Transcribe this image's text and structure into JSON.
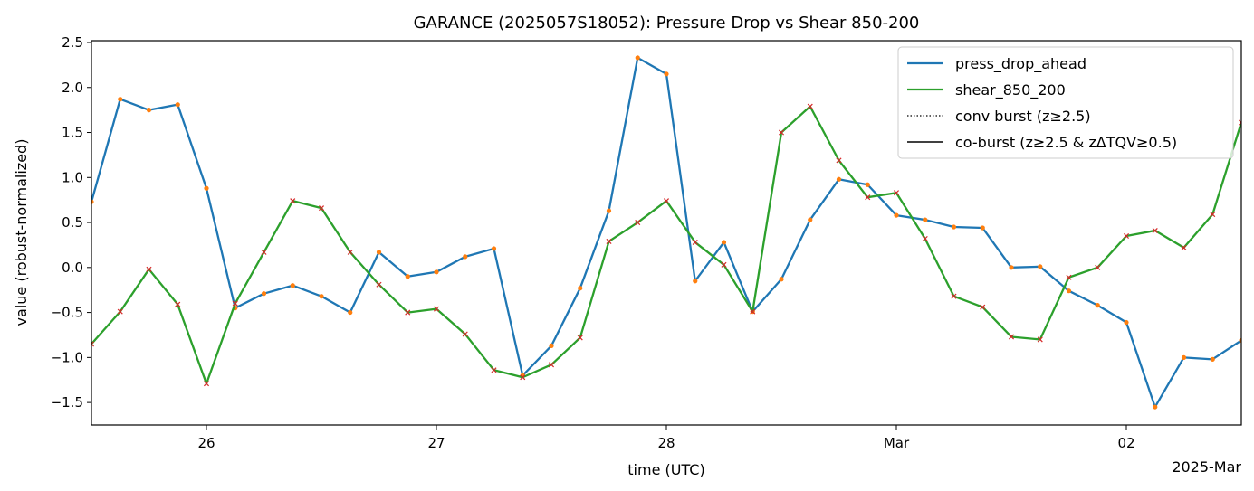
{
  "chart_data": {
    "type": "line",
    "title": "GARANCE (2025057S18052): Pressure Drop vs Shear 850-200",
    "xlabel": "time (UTC)",
    "ylabel": "value (robust-normalized)",
    "x_offset_label": "2025-Mar",
    "x_ticks": [
      {
        "x": 1,
        "label": "26"
      },
      {
        "x": 2,
        "label": "27"
      },
      {
        "x": 3,
        "label": "28"
      },
      {
        "x": 4,
        "label": "Mar"
      },
      {
        "x": 5,
        "label": "02"
      }
    ],
    "y_ticks": [
      -1.5,
      -1.0,
      -0.5,
      0.0,
      0.5,
      1.0,
      1.5,
      2.0,
      2.5
    ],
    "y_tick_labels": [
      "−1.5",
      "−1.0",
      "−0.5",
      "0.0",
      "0.5",
      "1.0",
      "1.5",
      "2.0",
      "2.5"
    ],
    "xlim": [
      0.5,
      5.5
    ],
    "ylim": [
      -1.75,
      2.52
    ],
    "x": [
      0.5,
      0.625,
      0.75,
      0.875,
      1.0,
      1.125,
      1.25,
      1.375,
      1.5,
      1.625,
      1.75,
      1.875,
      2.0,
      2.125,
      2.25,
      2.375,
      2.5,
      2.625,
      2.75,
      2.875,
      3.0,
      3.125,
      3.25,
      3.375,
      3.5,
      3.625,
      3.75,
      3.875,
      4.0,
      4.125,
      4.25,
      4.375,
      4.5,
      4.625,
      4.75,
      4.875,
      5.0,
      5.125,
      5.25,
      5.375,
      5.5
    ],
    "series": [
      {
        "name": "press_drop_ahead",
        "color": "#1f77b4",
        "marker_color": "#ff7f0e",
        "marker": "dot",
        "values": [
          0.73,
          1.87,
          1.75,
          1.81,
          0.88,
          -0.45,
          -0.29,
          -0.2,
          -0.32,
          -0.5,
          0.17,
          -0.1,
          -0.05,
          0.12,
          0.21,
          -1.2,
          -0.87,
          -0.23,
          0.63,
          2.33,
          2.15,
          -0.15,
          0.28,
          -0.49,
          -0.13,
          0.53,
          0.98,
          0.92,
          0.58,
          0.53,
          0.45,
          0.44,
          0.0,
          0.01,
          -0.26,
          -0.42,
          -0.61,
          -1.55,
          -1.0,
          -1.02,
          -0.81
        ]
      },
      {
        "name": "shear_850_200",
        "color": "#2ca02c",
        "marker_color": "#d62728",
        "marker": "x",
        "values": [
          -0.85,
          -0.49,
          -0.02,
          -0.41,
          -1.29,
          -0.4,
          0.17,
          0.74,
          0.66,
          0.17,
          -0.19,
          -0.5,
          -0.46,
          -0.74,
          -1.14,
          -1.22,
          -1.08,
          -0.78,
          0.29,
          0.5,
          0.74,
          0.28,
          0.03,
          -0.49,
          1.5,
          1.79,
          1.19,
          0.78,
          0.83,
          0.32,
          -0.32,
          -0.44,
          -0.77,
          -0.8,
          -0.11,
          0.0,
          0.35,
          0.41,
          0.22,
          0.59,
          1.61
        ]
      }
    ],
    "legend": {
      "position": "top-right",
      "entries": [
        {
          "label": "press_drop_ahead",
          "color": "#1f77b4",
          "style": "solid"
        },
        {
          "label": "shear_850_200",
          "color": "#2ca02c",
          "style": "solid"
        },
        {
          "label": "conv burst (z≥2.5)",
          "color": "#000000",
          "style": "dotted"
        },
        {
          "label": "co-burst (z≥2.5 & zΔTQV≥0.5)",
          "color": "#000000",
          "style": "solid"
        }
      ]
    },
    "grid": false
  }
}
